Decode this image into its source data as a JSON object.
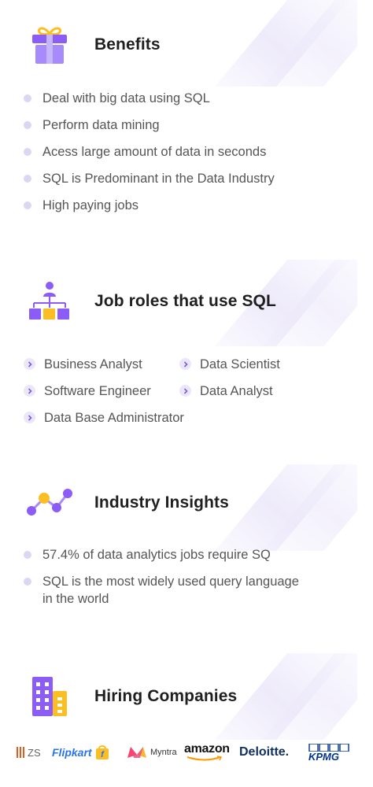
{
  "benefits": {
    "title": "Benefits",
    "icon": "gift-icon",
    "items": [
      "Deal with big data using SQL",
      "Perform data mining",
      "Acess large amount of data in seconds",
      "SQL is Predominant in the Data Industry",
      "High paying jobs"
    ]
  },
  "job_roles": {
    "title": "Job roles that use SQL",
    "icon": "org-chart-icon",
    "items": [
      "Business Analyst",
      "Data Scientist",
      "Software Engineer",
      "Data Analyst",
      "Data Base Administrator"
    ]
  },
  "insights": {
    "title": "Industry Insights",
    "icon": "chart-nodes-icon",
    "items": [
      "57.4% of data analytics jobs require SQ",
      "SQL is the most widely used query language in the world"
    ]
  },
  "hiring": {
    "title": "Hiring Companies",
    "icon": "building-icon",
    "logos": [
      "ZS",
      "Flipkart",
      "Myntra",
      "amazon",
      "Deloitte.",
      "KPMG"
    ]
  },
  "colors": {
    "accent": "#8b5cf6",
    "accent_light": "#b79cf9",
    "yellow": "#fbbf24",
    "bullet": "#dcd6f3"
  }
}
